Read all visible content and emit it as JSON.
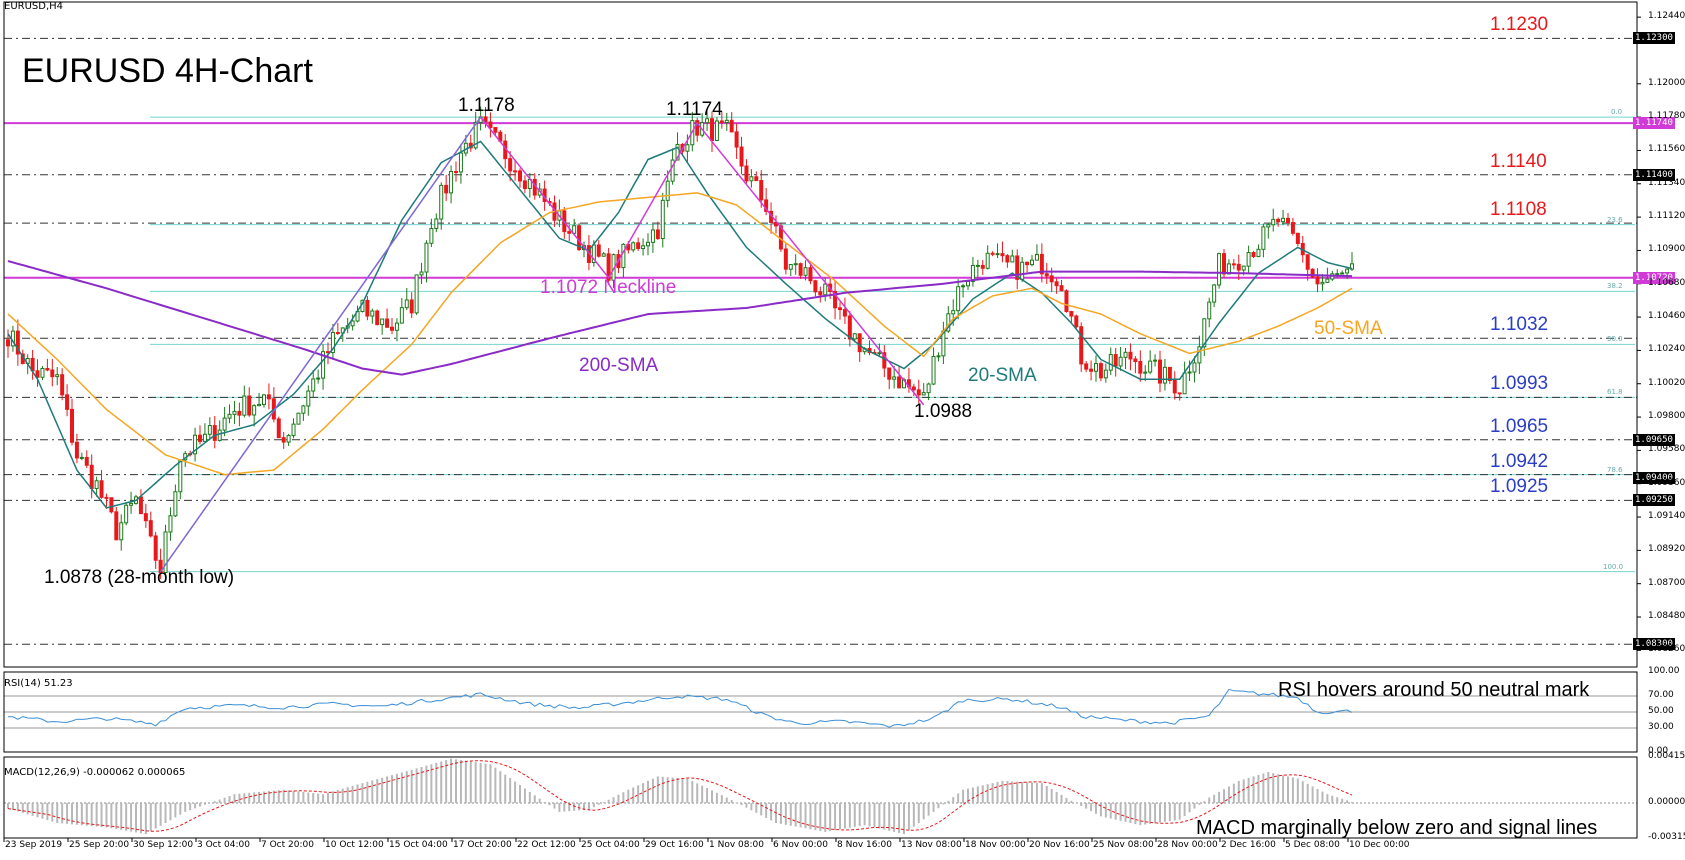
{
  "symbol_label": "EURUSD,H4",
  "title": "EURUSD 4H-Chart",
  "colors": {
    "bull": "#1a7a1a",
    "bear": "#e8181b",
    "sma20": "#1f7a7a",
    "sma50": "#f5a623",
    "sma200": "#8a2bc8",
    "pattern": "#d03ad6",
    "fib": "#74d4cf",
    "resistance": "#e8181b",
    "support": "#2a3ec8",
    "rsi": "#3a8fd8",
    "macd_hist": "#b8b8b8",
    "macd_signal": "#e8181b"
  },
  "chart_data": [
    {
      "type": "candlestick",
      "title": "EURUSD 4H-Chart",
      "ylim": [
        1.0815,
        1.1254
      ],
      "x_ticks": [
        "23 Sep 2019",
        "25 Sep 20:00",
        "30 Sep 12:00",
        "3 Oct 04:00",
        "7 Oct 20:00",
        "10 Oct 12:00",
        "15 Oct 04:00",
        "17 Oct 20:00",
        "22 Oct 12:00",
        "25 Oct 04:00",
        "29 Oct 16:00",
        "1 Nov 08:00",
        "6 Nov 00:00",
        "8 Nov 16:00",
        "13 Nov 08:00",
        "18 Nov 00:00",
        "20 Nov 16:00",
        "25 Nov 08:00",
        "28 Nov 00:00",
        "2 Dec 16:00",
        "5 Dec 08:00",
        "10 Dec 00:00"
      ],
      "y_ticks": [
        "1.12440",
        "1.12300",
        "1.12000",
        "1.11780",
        "1.11740",
        "1.11560",
        "1.11400",
        "1.11340",
        "1.11120",
        "1.10900",
        "1.10720",
        "1.10680",
        "1.10460",
        "1.10240",
        "1.10020",
        "1.09800",
        "1.09650",
        "1.09580",
        "1.09400",
        "1.09360",
        "1.09250",
        "1.09140",
        "1.08920",
        "1.08700",
        "1.08480",
        "1.08300",
        "1.08260"
      ],
      "series": [
        {
          "name": "20-SMA",
          "pivots": [
            [
              0,
              1.1035
            ],
            [
              6,
              1.1005
            ],
            [
              14,
              1.0945
            ],
            [
              20,
              1.092
            ],
            [
              26,
              1.0925
            ],
            [
              34,
              1.0948
            ],
            [
              42,
              1.0968
            ],
            [
              50,
              1.0975
            ],
            [
              58,
              1.0995
            ],
            [
              66,
              1.1025
            ],
            [
              72,
              1.1055
            ],
            [
              80,
              1.111
            ],
            [
              88,
              1.1148
            ],
            [
              96,
              1.1162
            ],
            [
              104,
              1.113
            ],
            [
              112,
              1.1098
            ],
            [
              118,
              1.109
            ],
            [
              124,
              1.1115
            ],
            [
              130,
              1.115
            ],
            [
              136,
              1.1158
            ],
            [
              142,
              1.1128
            ],
            [
              150,
              1.1092
            ],
            [
              158,
              1.1068
            ],
            [
              166,
              1.1045
            ],
            [
              174,
              1.1025
            ],
            [
              182,
              1.1012
            ],
            [
              188,
              1.1028
            ],
            [
              196,
              1.1058
            ],
            [
              204,
              1.1075
            ],
            [
              210,
              1.1062
            ],
            [
              216,
              1.1042
            ],
            [
              222,
              1.1018
            ],
            [
              230,
              1.1005
            ],
            [
              238,
              1.1005
            ],
            [
              246,
              1.1042
            ],
            [
              254,
              1.1075
            ],
            [
              262,
              1.1092
            ],
            [
              268,
              1.1082
            ],
            [
              273,
              1.1078
            ]
          ]
        },
        {
          "name": "50-SMA",
          "pivots": [
            [
              0,
              1.1048
            ],
            [
              10,
              1.1018
            ],
            [
              20,
              1.0985
            ],
            [
              32,
              1.0955
            ],
            [
              44,
              1.0942
            ],
            [
              54,
              1.0945
            ],
            [
              64,
              1.0972
            ],
            [
              72,
              1.0998
            ],
            [
              82,
              1.1028
            ],
            [
              90,
              1.1062
            ],
            [
              100,
              1.1095
            ],
            [
              110,
              1.1115
            ],
            [
              120,
              1.1122
            ],
            [
              130,
              1.1125
            ],
            [
              140,
              1.1128
            ],
            [
              148,
              1.112
            ],
            [
              158,
              1.1095
            ],
            [
              168,
              1.107
            ],
            [
              178,
              1.104
            ],
            [
              186,
              1.102
            ],
            [
              192,
              1.1045
            ],
            [
              200,
              1.106
            ],
            [
              208,
              1.1065
            ],
            [
              214,
              1.1055
            ],
            [
              222,
              1.1048
            ],
            [
              230,
              1.1035
            ],
            [
              240,
              1.1022
            ],
            [
              250,
              1.103
            ],
            [
              258,
              1.104
            ],
            [
              266,
              1.1052
            ],
            [
              273,
              1.1065
            ]
          ]
        },
        {
          "name": "200-SMA",
          "pivots": [
            [
              0,
              1.1083
            ],
            [
              20,
              1.1065
            ],
            [
              40,
              1.1045
            ],
            [
              60,
              1.1025
            ],
            [
              72,
              1.1012
            ],
            [
              80,
              1.1008
            ],
            [
              90,
              1.1015
            ],
            [
              110,
              1.1032
            ],
            [
              130,
              1.1048
            ],
            [
              150,
              1.1052
            ],
            [
              170,
              1.1062
            ],
            [
              190,
              1.1068
            ],
            [
              210,
              1.1076
            ],
            [
              230,
              1.1076
            ],
            [
              250,
              1.1075
            ],
            [
              273,
              1.1073
            ]
          ]
        }
      ],
      "pattern": {
        "name": "double top",
        "points": [
          [
            "1.0878",
            1.0878
          ],
          [
            "1.1178",
            1.1178
          ],
          [
            "1.1072",
            1.1072
          ],
          [
            "1.1174",
            1.1174
          ],
          [
            "1.0988",
            1.0988
          ]
        ]
      },
      "levels": [
        {
          "label": "1.1230",
          "value": 1.123,
          "kind": "resistance"
        },
        {
          "label": "1.1140",
          "value": 1.114,
          "kind": "resistance"
        },
        {
          "label": "1.1108",
          "value": 1.1108,
          "kind": "resistance"
        },
        {
          "label": "1.1072",
          "value": 1.1072,
          "kind": "neckline"
        },
        {
          "label": "1.1032",
          "value": 1.1032,
          "kind": "support"
        },
        {
          "label": "1.0993",
          "value": 1.0993,
          "kind": "support"
        },
        {
          "label": "1.0965",
          "value": 1.0965,
          "kind": "support"
        },
        {
          "label": "1.0942",
          "value": 1.0942,
          "kind": "support"
        },
        {
          "label": "1.0925",
          "value": 1.0925,
          "kind": "support"
        },
        {
          "label": "1.0830",
          "value": 1.083,
          "kind": "support"
        }
      ],
      "fibonacci": [
        {
          "label": "0.0",
          "value": 1.1178
        },
        {
          "label": "23.6",
          "value": 1.1107
        },
        {
          "label": "38.2",
          "value": 1.1063
        },
        {
          "label": "50.0",
          "value": 1.1028
        },
        {
          "label": "61.8",
          "value": 1.0993
        },
        {
          "label": "78.6",
          "value": 1.0942
        },
        {
          "label": "100.0",
          "value": 1.0878
        }
      ],
      "price_tags": [
        {
          "label": "1.12300",
          "value": 1.123
        },
        {
          "label": "1.11740",
          "value": 1.1174
        },
        {
          "label": "1.11400",
          "value": 1.114
        },
        {
          "label": "1.10720",
          "value": 1.1072
        },
        {
          "label": "1.09650",
          "value": 1.0965
        },
        {
          "label": "1.09400",
          "value": 1.094
        },
        {
          "label": "1.09250",
          "value": 1.0925
        },
        {
          "label": "1.08300",
          "value": 1.083
        }
      ],
      "candle_pivots": [
        [
          0,
          1.1035
        ],
        [
          5,
          1.101
        ],
        [
          10,
          1.1005
        ],
        [
          14,
          1.0955
        ],
        [
          18,
          1.0935
        ],
        [
          22,
          1.0905
        ],
        [
          26,
          1.0925
        ],
        [
          29,
          1.0895
        ],
        [
          31,
          1.088
        ],
        [
          35,
          1.0955
        ],
        [
          40,
          1.0965
        ],
        [
          46,
          1.0985
        ],
        [
          52,
          1.0992
        ],
        [
          56,
          1.0965
        ],
        [
          60,
          1.099
        ],
        [
          66,
          1.103
        ],
        [
          72,
          1.105
        ],
        [
          78,
          1.104
        ],
        [
          82,
          1.1055
        ],
        [
          86,
          1.111
        ],
        [
          92,
          1.1155
        ],
        [
          96,
          1.1172
        ],
        [
          100,
          1.1158
        ],
        [
          106,
          1.1135
        ],
        [
          112,
          1.111
        ],
        [
          118,
          1.109
        ],
        [
          122,
          1.1078
        ],
        [
          128,
          1.1095
        ],
        [
          132,
          1.1105
        ],
        [
          136,
          1.116
        ],
        [
          140,
          1.1172
        ],
        [
          146,
          1.1168
        ],
        [
          150,
          1.114
        ],
        [
          154,
          1.112
        ],
        [
          158,
          1.108
        ],
        [
          162,
          1.1075
        ],
        [
          166,
          1.106
        ],
        [
          170,
          1.104
        ],
        [
          176,
          1.1018
        ],
        [
          182,
          1.1002
        ],
        [
          186,
          1.0992
        ],
        [
          190,
          1.104
        ],
        [
          194,
          1.107
        ],
        [
          198,
          1.1085
        ],
        [
          202,
          1.108
        ],
        [
          206,
          1.1078
        ],
        [
          210,
          1.1082
        ],
        [
          214,
          1.107
        ],
        [
          218,
          1.102
        ],
        [
          222,
          1.101
        ],
        [
          228,
          1.102
        ],
        [
          234,
          1.1008
        ],
        [
          238,
          1.1
        ],
        [
          242,
          1.103
        ],
        [
          246,
          1.108
        ],
        [
          250,
          1.1085
        ],
        [
          254,
          1.1095
        ],
        [
          258,
          1.111
        ],
        [
          262,
          1.1092
        ],
        [
          266,
          1.1068
        ],
        [
          270,
          1.1072
        ],
        [
          273,
          1.1075
        ]
      ]
    },
    {
      "type": "line",
      "name": "RSI(14)",
      "label": "RSI(14) 51.23",
      "ylim": [
        0,
        100
      ],
      "y_ticks": [
        "100.00",
        "70.00",
        "50.00",
        "30.00",
        "0.00"
      ],
      "levels": [
        70,
        50,
        30
      ],
      "pivots": [
        [
          0,
          44
        ],
        [
          10,
          38
        ],
        [
          20,
          42
        ],
        [
          30,
          35
        ],
        [
          36,
          55
        ],
        [
          46,
          58
        ],
        [
          56,
          56
        ],
        [
          66,
          60
        ],
        [
          76,
          57
        ],
        [
          86,
          65
        ],
        [
          96,
          72
        ],
        [
          106,
          60
        ],
        [
          116,
          55
        ],
        [
          126,
          62
        ],
        [
          136,
          70
        ],
        [
          146,
          66
        ],
        [
          154,
          45
        ],
        [
          160,
          36
        ],
        [
          170,
          38
        ],
        [
          180,
          32
        ],
        [
          188,
          42
        ],
        [
          194,
          65
        ],
        [
          204,
          66
        ],
        [
          214,
          56
        ],
        [
          218,
          45
        ],
        [
          226,
          40
        ],
        [
          236,
          36
        ],
        [
          244,
          45
        ],
        [
          248,
          76
        ],
        [
          256,
          72
        ],
        [
          262,
          68
        ],
        [
          266,
          50
        ],
        [
          273,
          51
        ]
      ]
    },
    {
      "type": "line",
      "name": "MACD(12,26,9)",
      "label": "MACD(12,26,9) -0.000062 0.000065",
      "ylim": [
        -0.003152,
        0.004152
      ],
      "y_ticks": [
        "0.004152",
        "0.000000",
        "-0.003152"
      ],
      "pivots": [
        [
          0,
          -0.0005
        ],
        [
          10,
          -0.0018
        ],
        [
          20,
          -0.0022
        ],
        [
          28,
          -0.0028
        ],
        [
          36,
          -0.0008
        ],
        [
          46,
          0.0008
        ],
        [
          56,
          0.0012
        ],
        [
          64,
          0.0008
        ],
        [
          72,
          0.0018
        ],
        [
          82,
          0.003
        ],
        [
          90,
          0.004
        ],
        [
          98,
          0.0035
        ],
        [
          106,
          0.001
        ],
        [
          112,
          -0.0008
        ],
        [
          118,
          -0.0006
        ],
        [
          126,
          0.0012
        ],
        [
          132,
          0.0024
        ],
        [
          138,
          0.0022
        ],
        [
          146,
          0.0005
        ],
        [
          156,
          -0.0018
        ],
        [
          166,
          -0.0026
        ],
        [
          174,
          -0.002
        ],
        [
          182,
          -0.0028
        ],
        [
          188,
          -0.0008
        ],
        [
          194,
          0.0012
        ],
        [
          202,
          0.002
        ],
        [
          210,
          0.0018
        ],
        [
          216,
          0.0002
        ],
        [
          222,
          -0.0012
        ],
        [
          230,
          -0.002
        ],
        [
          238,
          -0.0015
        ],
        [
          244,
          0.0005
        ],
        [
          250,
          0.002
        ],
        [
          256,
          0.0028
        ],
        [
          262,
          0.0022
        ],
        [
          268,
          0.0008
        ],
        [
          273,
          0.0001
        ]
      ]
    }
  ],
  "annotations": {
    "top_left": "1.1178",
    "top_right": "1.1174",
    "low": "1.0878 (28-month low)",
    "neckline": "1.1072 Neckline",
    "sma200": "200-SMA",
    "sma20": "20-SMA",
    "sma50": "50-SMA",
    "low2": "1.0988",
    "rsi_note": "RSI hovers around 50 neutral mark",
    "macd_note": "MACD marginally below zero and signal lines"
  }
}
